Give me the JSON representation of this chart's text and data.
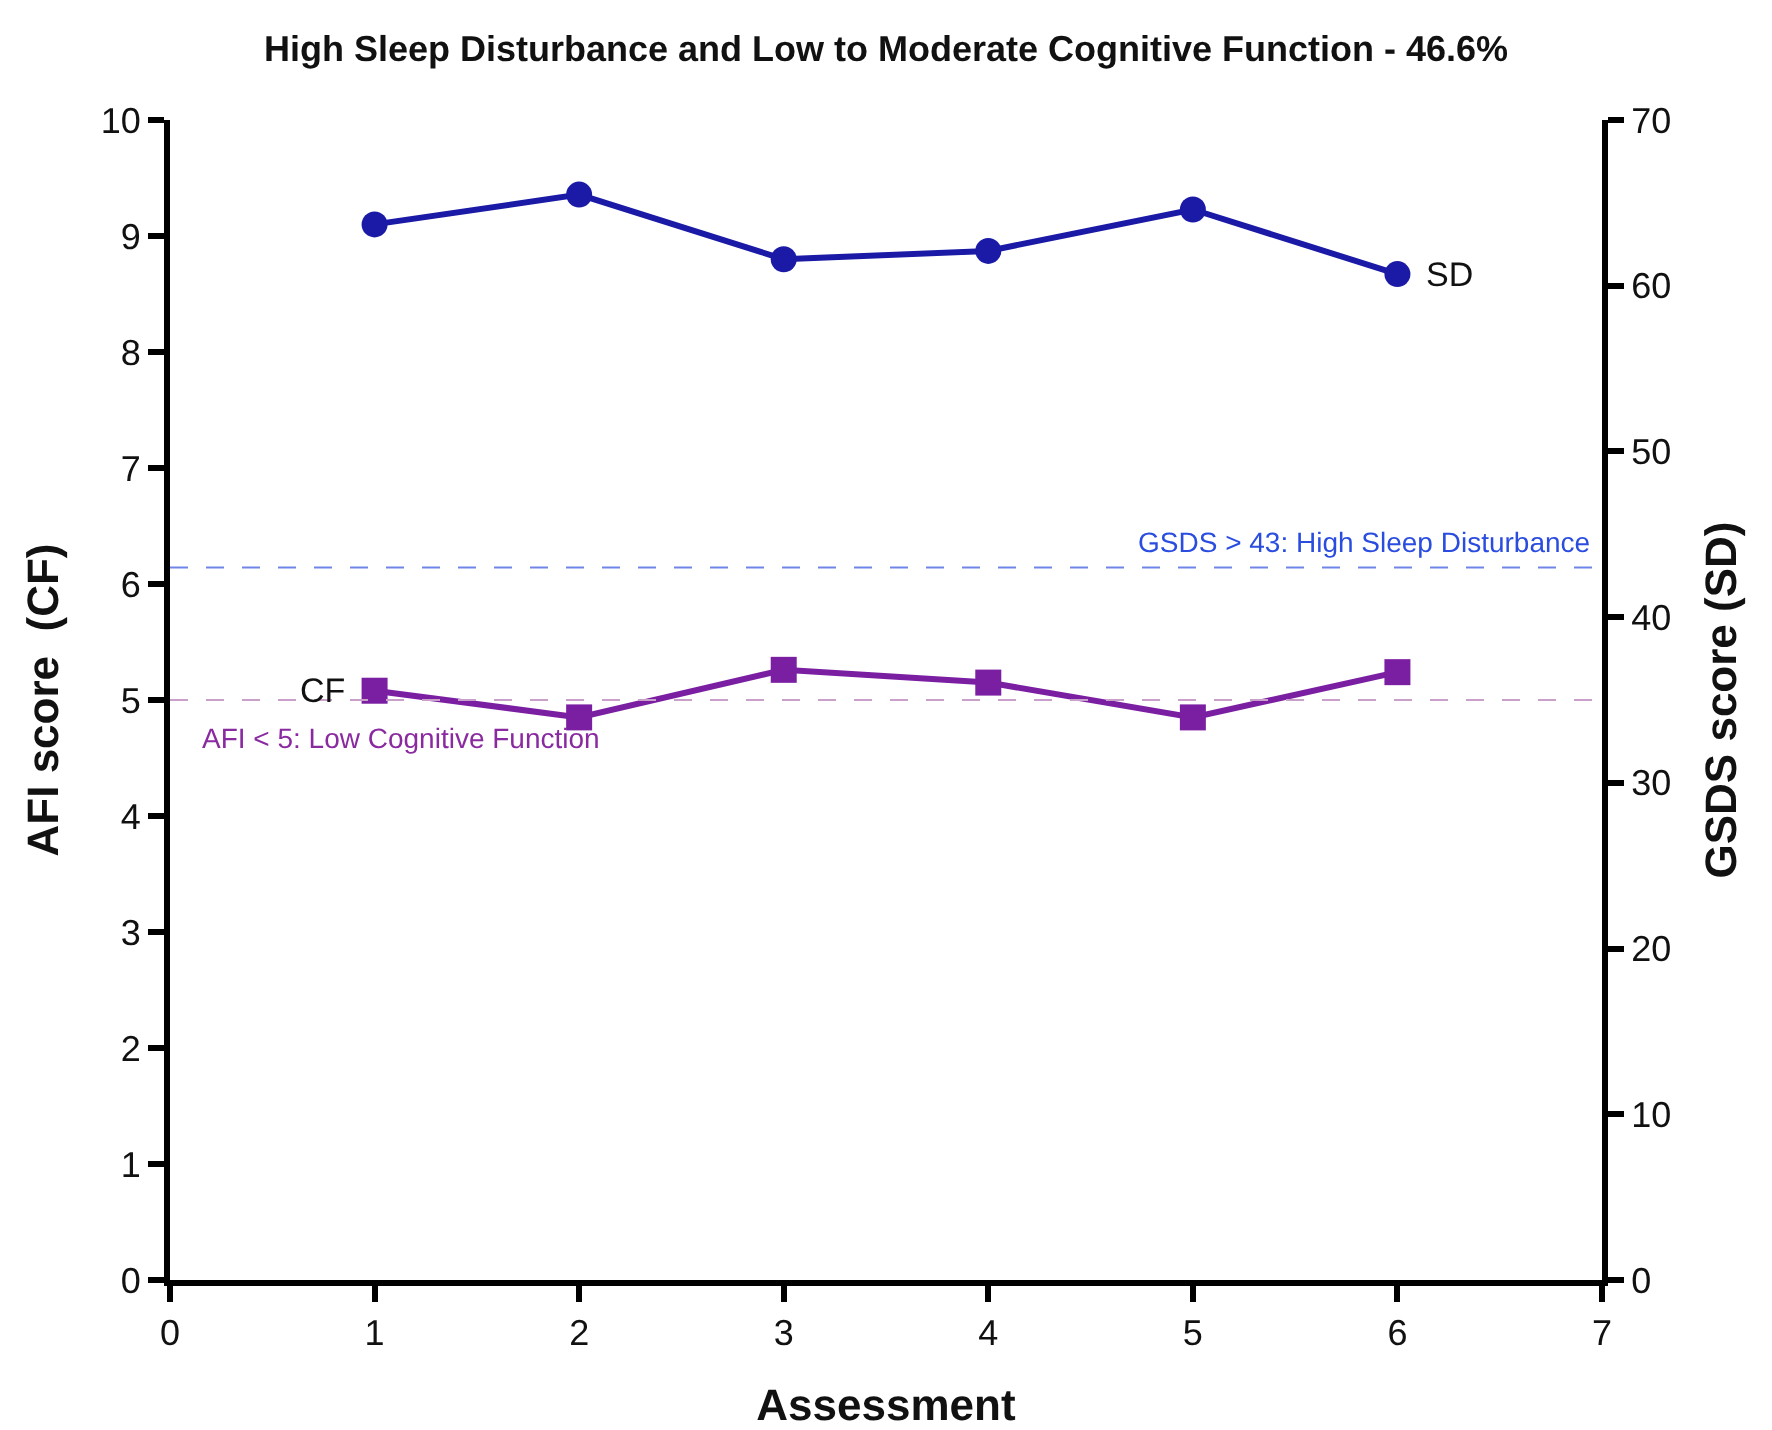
{
  "chart_data": {
    "type": "line",
    "title": "High Sleep Disturbance and Low to Moderate Cognitive Function - 46.6%",
    "xlabel": "Assessment",
    "ylabel": "AFI score  (CF)",
    "y2label": "GSDS score (SD)",
    "x": [
      1,
      2,
      3,
      4,
      5,
      6
    ],
    "series": [
      {
        "name": "SD",
        "color": "#1a1aa6",
        "axis": "y2",
        "marker": "circle",
        "values": [
          63.7,
          65.5,
          61.6,
          62.1,
          64.6,
          60.7
        ]
      },
      {
        "name": "CF",
        "color": "#7b1fa2",
        "marker": "square",
        "values": [
          5.08,
          4.85,
          5.26,
          5.15,
          4.85,
          5.24
        ]
      }
    ],
    "xlim": [
      0,
      7
    ],
    "xticks": [
      0,
      1,
      2,
      3,
      4,
      5,
      6,
      7
    ],
    "ylim": [
      0,
      10
    ],
    "yticks": [
      0,
      1,
      2,
      3,
      4,
      5,
      6,
      7,
      8,
      9,
      10
    ],
    "y2lim": [
      0,
      70
    ],
    "y2ticks": [
      0,
      10,
      20,
      30,
      40,
      50,
      60,
      70
    ],
    "ref_lines": [
      {
        "axis": "y2",
        "value": 43,
        "label": "GSDS > 43: High Sleep Disturbance",
        "color": "#6f86e8",
        "line_style": "dashed"
      },
      {
        "axis": "y",
        "value": 5,
        "label": "AFI < 5: Low Cognitive Function",
        "color": "#c9a0c9",
        "line_style": "dashed"
      }
    ],
    "grid": false,
    "legend": false,
    "line_style": "solid"
  }
}
